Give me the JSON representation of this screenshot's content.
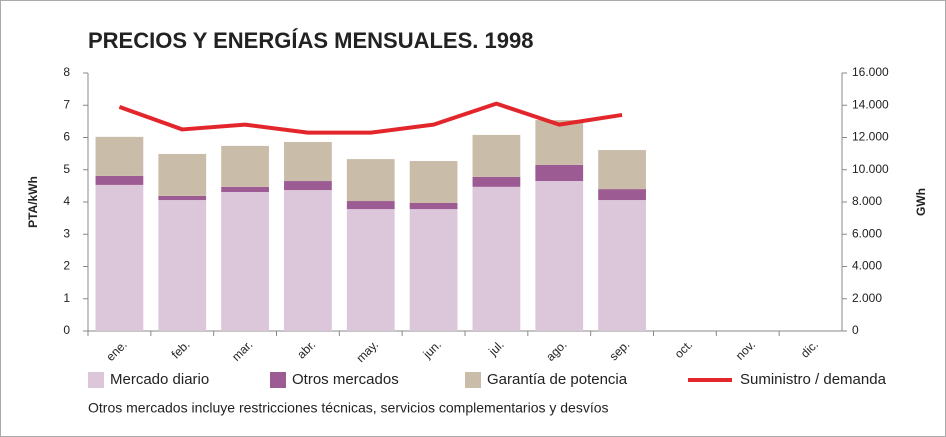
{
  "chart_data": {
    "type": "bar",
    "stacked": true,
    "title": "PRECIOS Y ENERGÍAS MENSUALES. 1998",
    "ylabel": "PTA/kWh",
    "y2label": "GWh",
    "note": "Otros mercados incluye restricciones técnicas, servicios complementarios y desvíos",
    "categories": [
      "ene.",
      "feb.",
      "mar.",
      "abr.",
      "may.",
      "jun.",
      "jul.",
      "ago.",
      "sep.",
      "oct.",
      "nov.",
      "dic."
    ],
    "series": [
      {
        "name": "Mercado diario",
        "color": "#dcc6da",
        "values": [
          4.53,
          4.06,
          4.31,
          4.37,
          3.78,
          3.78,
          4.47,
          4.65,
          4.06,
          null,
          null,
          null
        ]
      },
      {
        "name": "Otros mercados",
        "color": "#9c5b92",
        "values": [
          0.28,
          0.13,
          0.16,
          0.28,
          0.25,
          0.19,
          0.31,
          0.5,
          0.34,
          null,
          null,
          null
        ]
      },
      {
        "name": "Garantía de potencia",
        "color": "#c9bca8",
        "values": [
          1.21,
          1.3,
          1.27,
          1.21,
          1.3,
          1.3,
          1.3,
          1.39,
          1.21,
          null,
          null,
          null
        ]
      },
      {
        "name": "Suministro / demanda",
        "color": "#e3262b",
        "type": "line",
        "axis": "y2",
        "values": [
          13900,
          12500,
          12800,
          12300,
          12300,
          12800,
          14100,
          12800,
          13400,
          null,
          null,
          null
        ]
      }
    ],
    "ylim": [
      0,
      8
    ],
    "yticks": [
      0,
      1,
      2,
      3,
      4,
      5,
      6,
      7,
      8
    ],
    "y2lim": [
      0,
      16000
    ],
    "y2ticks": [
      0,
      {
        "value": 2000,
        "label": "2.000"
      },
      {
        "value": 4000,
        "label": "4.000"
      },
      {
        "value": 6000,
        "label": "6.000"
      },
      {
        "value": 8000,
        "label": "8.000"
      },
      {
        "value": 10000,
        "label": "10.000"
      },
      {
        "value": 12000,
        "label": "12.000"
      },
      {
        "value": 14000,
        "label": "14.000"
      },
      {
        "value": 16000,
        "label": "16.000"
      }
    ]
  }
}
